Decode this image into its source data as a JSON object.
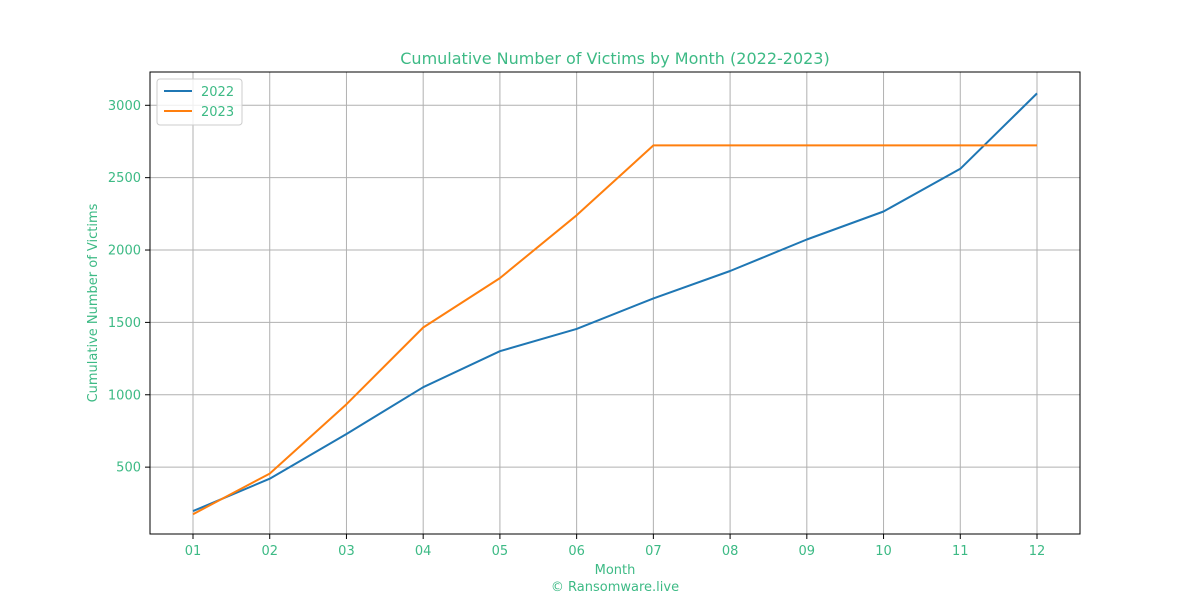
{
  "colors": {
    "text": "#3dba85",
    "grid": "#b0b0b0",
    "series_2022": "#1f77b4",
    "series_2023": "#ff7f0e"
  },
  "chart_data": {
    "type": "line",
    "title": "Cumulative Number of Victims by Month (2022-2023)",
    "xlabel": "Month",
    "ylabel": "Cumulative Number of Victims",
    "credit": "© Ransomware.live",
    "categories": [
      "01",
      "02",
      "03",
      "04",
      "05",
      "06",
      "07",
      "08",
      "09",
      "10",
      "11",
      "12"
    ],
    "series": [
      {
        "name": "2022",
        "values": [
          196,
          420,
          729,
          1052,
          1301,
          1455,
          1666,
          1855,
          2073,
          2266,
          2561,
          3082
        ]
      },
      {
        "name": "2023",
        "values": [
          175,
          455,
          935,
          1465,
          1806,
          2240,
          2723,
          2723,
          2723,
          2723,
          2723,
          2723
        ]
      }
    ],
    "yticks": [
      500,
      1000,
      1500,
      2000,
      2500,
      3000
    ],
    "ylim": [
      38,
      3230
    ],
    "grid": true,
    "legend_position": "top-left"
  }
}
